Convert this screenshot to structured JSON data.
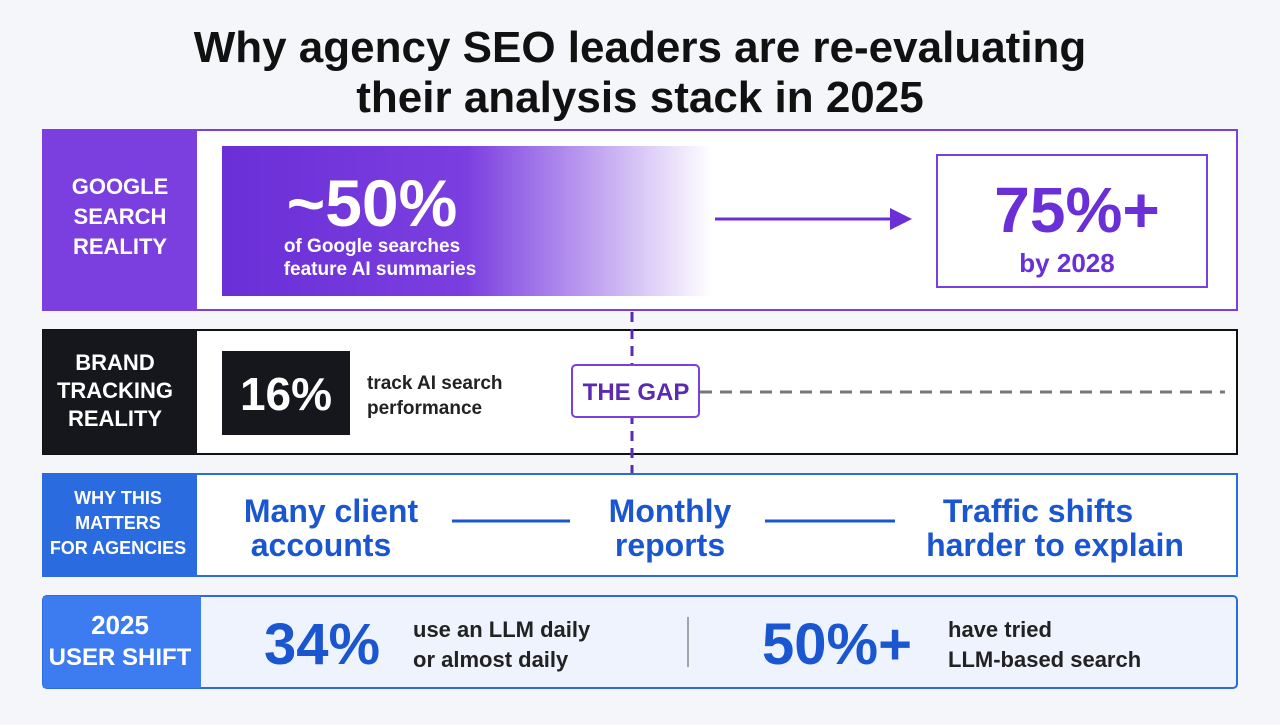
{
  "title": [
    "Why agency SEO leaders are re-evaluating",
    "their analysis stack in 2025"
  ],
  "rows": [
    {
      "label": [
        "GOOGLE",
        "SEARCH",
        "REALITY"
      ],
      "stat": "~50%",
      "desc": [
        "of Google searches",
        "feature AI summaries"
      ],
      "target": "75%+",
      "target_note": "by 2028"
    },
    {
      "label": [
        "BRAND",
        "TRACKING",
        "REALITY"
      ],
      "stat": "16%",
      "desc": [
        "track AI search",
        "performance"
      ],
      "gap": "THE GAP"
    },
    {
      "label": [
        "WHY THIS",
        "MATTERS",
        "FOR AGENCIES"
      ],
      "items": [
        [
          "Many client",
          "accounts"
        ],
        [
          "Monthly",
          "reports"
        ],
        [
          "Traffic shifts",
          "harder to explain"
        ]
      ]
    },
    {
      "label": [
        "2025",
        "USER SHIFT"
      ],
      "stats": [
        {
          "value": "34%",
          "desc": [
            "use an LLM daily",
            "or almost daily"
          ]
        },
        {
          "value": "50%+",
          "desc": [
            "have tried",
            "LLM-based search"
          ]
        }
      ]
    }
  ]
}
